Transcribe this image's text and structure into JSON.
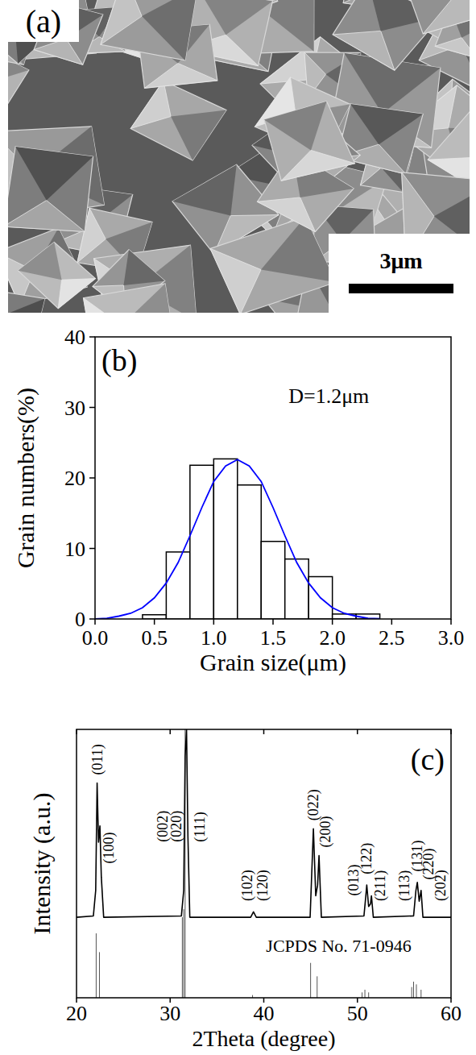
{
  "chart_data": [
    {
      "type": "image",
      "panel_label": "(a)",
      "scale_bar": "3μm"
    },
    {
      "type": "histogram",
      "panel_label": "(b)",
      "bins": [
        0.4,
        0.6,
        0.8,
        1.0,
        1.2,
        1.4,
        1.6,
        1.8,
        2.0,
        2.2,
        2.4
      ],
      "values": [
        0.6,
        9.5,
        21.8,
        22.7,
        19,
        11,
        8.5,
        6,
        0.7,
        0.7
      ],
      "color": "#ffffff",
      "x_label": "Grain size(μm)",
      "y_label": "Grain numbers(%)",
      "xlim": [
        0,
        3
      ],
      "ylim": [
        0,
        40
      ],
      "xticks": [
        {
          "value": 0,
          "label": "0.0"
        },
        {
          "value": 0.5,
          "label": "0.5"
        },
        {
          "value": 1,
          "label": "1.0"
        },
        {
          "value": 1.5,
          "label": "1.5"
        },
        {
          "value": 2,
          "label": "2.0"
        },
        {
          "value": 2.5,
          "label": "2.5"
        },
        {
          "value": 3,
          "label": "3.0"
        }
      ],
      "yticks": [
        0,
        10,
        20,
        30,
        40
      ],
      "fit": {
        "color": "#0000ff",
        "x": [
          0.0,
          0.1,
          0.2,
          0.3,
          0.4,
          0.5,
          0.6,
          0.7,
          0.8,
          0.9,
          1.0,
          1.1,
          1.2,
          1.3,
          1.4,
          1.5,
          1.6,
          1.7,
          1.8,
          1.9,
          2.0,
          2.1,
          2.2,
          2.3,
          2.4
        ],
        "values": [
          0.01,
          0.1,
          0.4,
          0.8,
          1.6,
          3.0,
          5.1,
          8.0,
          11.8,
          15.8,
          19.5,
          21.7,
          22.6,
          21.7,
          19.5,
          15.8,
          11.8,
          8.0,
          5.1,
          3.0,
          1.6,
          0.8,
          0.4,
          0.1,
          0.05
        ]
      },
      "annotations": [
        {
          "text": "D=1.2μm",
          "x": 1.97,
          "y": 31.7
        }
      ]
    },
    {
      "type": "line",
      "panel_label": "(c)",
      "x_label": "2Theta (degree)",
      "y_label": "Intensity (a.u.)",
      "xlim": [
        20,
        60
      ],
      "ylim": [
        0,
        100
      ],
      "xticks": [
        20,
        30,
        40,
        50,
        60
      ],
      "tick_labels": "x",
      "pattern": {
        "color": "#000000",
        "x": [
          20,
          21.8,
          22.05,
          22.2,
          22.35,
          22.5,
          22.65,
          22.9,
          31.2,
          31.45,
          31.6,
          31.75,
          31.9,
          32.1,
          38.6,
          38.9,
          39.2,
          44.95,
          45.3,
          45.55,
          45.75,
          45.9,
          46.15,
          50.7,
          50.9,
          51.0,
          51.2,
          51.4,
          51.5,
          51.7,
          56.0,
          56.25,
          56.4,
          56.6,
          56.8,
          57.0,
          60
        ],
        "values": [
          30,
          30.5,
          40,
          80,
          58,
          64,
          45,
          30,
          30.5,
          40,
          90,
          100,
          60,
          30,
          30,
          32,
          30,
          30,
          63,
          38,
          42,
          53,
          30,
          30.5,
          38,
          42,
          34,
          35,
          38,
          30,
          30.5,
          40,
          43,
          36,
          40,
          30,
          30
        ]
      },
      "reference": {
        "color": "#555555",
        "x": [
          22.1,
          22.45,
          31.3,
          31.45,
          31.6,
          38.8,
          45.0,
          45.7,
          50.5,
          50.8,
          51.2,
          55.8,
          56.0,
          56.3,
          56.8
        ],
        "values": [
          24,
          17,
          30,
          33,
          100,
          1,
          13,
          8,
          2,
          3,
          2,
          4,
          6,
          5,
          3
        ]
      },
      "peak_labels": [
        {
          "text": "(011)",
          "x": 22.2,
          "y": 83
        },
        {
          "text": "(100)",
          "x": 23.4,
          "y": 50
        },
        {
          "text": "(002)",
          "x": 29.2,
          "y": 58
        },
        {
          "text": "(020)",
          "x": 30.7,
          "y": 58
        },
        {
          "text": "(111)",
          "x": 33.2,
          "y": 58
        },
        {
          "text": "(102)",
          "x": 38.2,
          "y": 36
        },
        {
          "text": "(120)",
          "x": 39.9,
          "y": 36
        },
        {
          "text": "(022)",
          "x": 45.3,
          "y": 66
        },
        {
          "text": "(200)",
          "x": 46.6,
          "y": 56
        },
        {
          "text": "(013)",
          "x": 49.6,
          "y": 38
        },
        {
          "text": "(122)",
          "x": 51.0,
          "y": 46
        },
        {
          "text": "(211)",
          "x": 52.4,
          "y": 36
        },
        {
          "text": "(113)",
          "x": 55.0,
          "y": 36
        },
        {
          "text": "(131)",
          "x": 56.4,
          "y": 47
        },
        {
          "text": "(220)",
          "x": 57.6,
          "y": 44
        },
        {
          "text": "(202)",
          "x": 58.9,
          "y": 36
        }
      ],
      "annotations": [
        {
          "text": "JCPDS No. 71-0946",
          "x": 48,
          "y": 17
        }
      ]
    }
  ]
}
